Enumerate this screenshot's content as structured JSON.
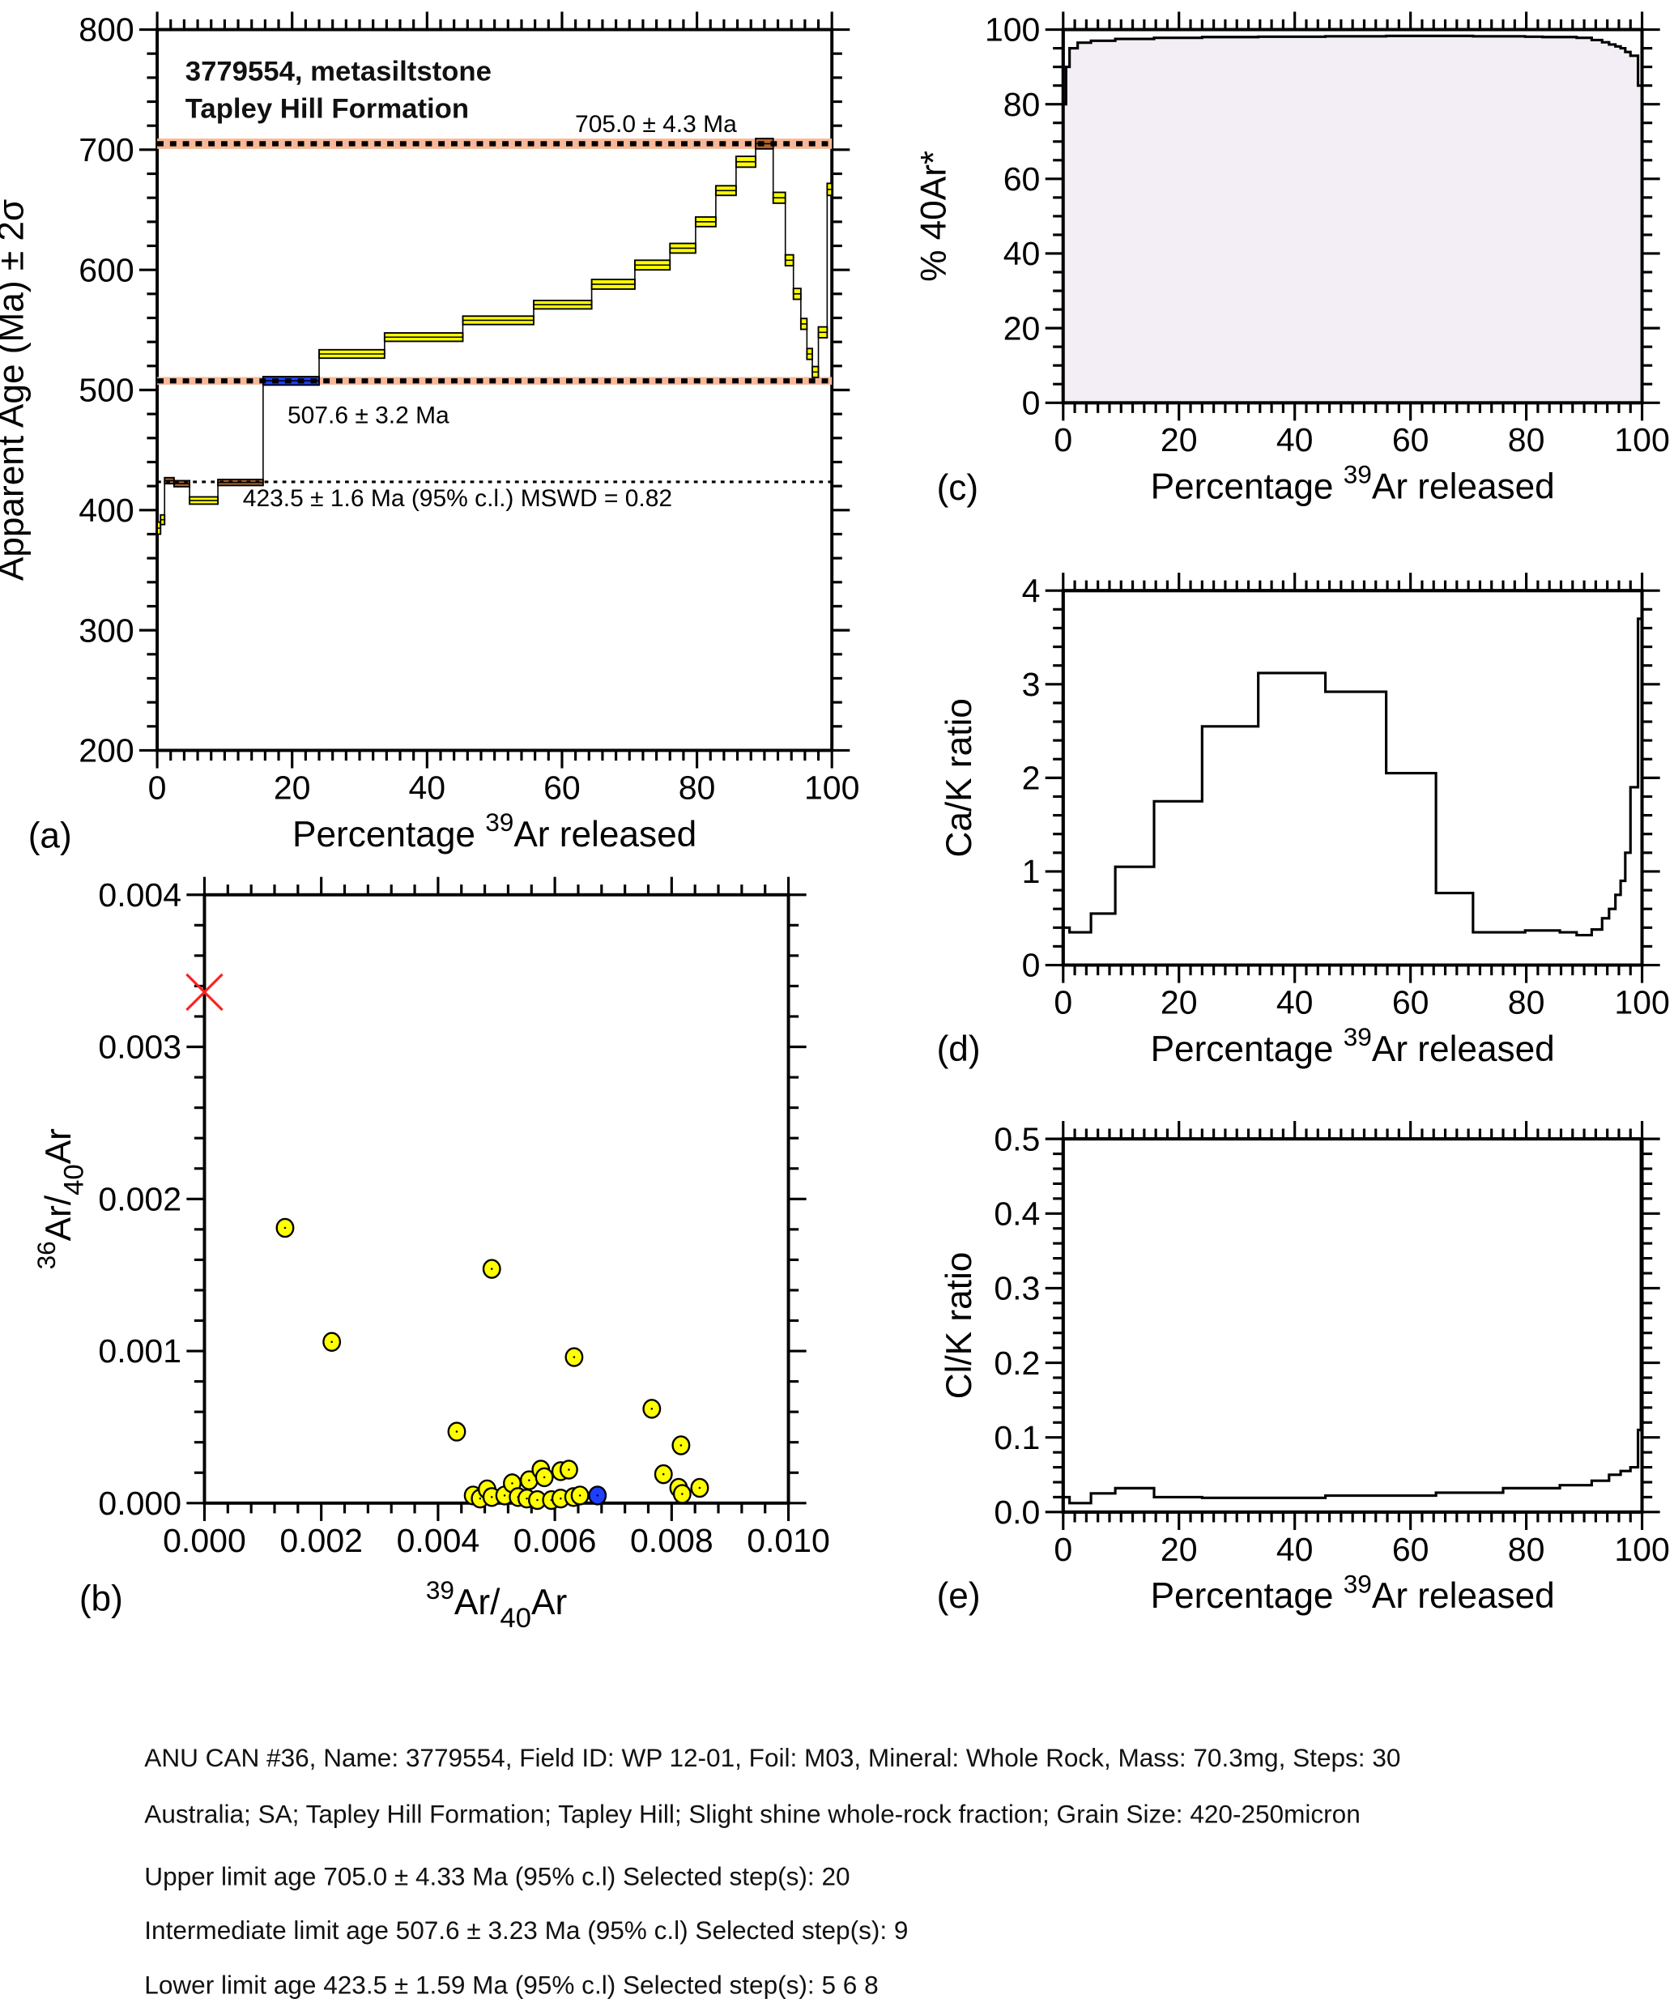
{
  "chart_data": [
    {
      "id": "a",
      "panel_label": "(a)",
      "type": "step-spectrum",
      "title_lines": [
        "3779554, metasiltstone",
        "Tapley Hill Formation"
      ],
      "xlabel_pre": "Percentage ",
      "xlabel_sup": "39",
      "xlabel_post": "Ar released",
      "ylabel": "Apparent Age (Ma) ± 2σ",
      "xlim": [
        0,
        100
      ],
      "ylim": [
        200,
        800
      ],
      "xticks": [
        0,
        20,
        40,
        60,
        80,
        100
      ],
      "yticks": [
        200,
        300,
        400,
        500,
        600,
        700,
        800
      ],
      "plateaus": [
        {
          "value": 705.0,
          "band": 4.3,
          "label": "705.0 ± 4.3 Ma",
          "style": "band"
        },
        {
          "value": 507.6,
          "band": 3.2,
          "label": "507.6 ± 3.2 Ma",
          "style": "band"
        },
        {
          "value": 423.5,
          "band": 0,
          "label": "423.5 ± 1.6 Ma (95% c.l.) MSWD = 0.82",
          "style": "line"
        }
      ],
      "steps": [
        {
          "x0": 0,
          "x1": 0.5,
          "age": 385,
          "err": 5,
          "group": "other"
        },
        {
          "x0": 0.5,
          "x1": 1.1,
          "age": 392,
          "err": 4,
          "group": "other"
        },
        {
          "x0": 1.1,
          "x1": 2.5,
          "age": 424.5,
          "err": 2.5,
          "group": "lower"
        },
        {
          "x0": 2.5,
          "x1": 4.8,
          "age": 422,
          "err": 2.5,
          "group": "lower"
        },
        {
          "x0": 4.8,
          "x1": 9.0,
          "age": 408,
          "err": 3,
          "group": "other"
        },
        {
          "x0": 9.0,
          "x1": 15.7,
          "age": 423,
          "err": 2.5,
          "group": "lower"
        },
        {
          "x0": 15.7,
          "x1": 24.0,
          "age": 507.6,
          "err": 3.5,
          "group": "intermediate"
        },
        {
          "x0": 24.0,
          "x1": 33.7,
          "age": 530,
          "err": 3.5,
          "group": "other"
        },
        {
          "x0": 33.7,
          "x1": 45.3,
          "age": 544,
          "err": 3.5,
          "group": "other"
        },
        {
          "x0": 45.3,
          "x1": 55.8,
          "age": 558,
          "err": 3.5,
          "group": "other"
        },
        {
          "x0": 55.8,
          "x1": 64.4,
          "age": 571,
          "err": 3.5,
          "group": "other"
        },
        {
          "x0": 64.4,
          "x1": 70.8,
          "age": 588,
          "err": 4,
          "group": "other"
        },
        {
          "x0": 70.8,
          "x1": 76.0,
          "age": 604,
          "err": 4,
          "group": "other"
        },
        {
          "x0": 76.0,
          "x1": 79.8,
          "age": 618,
          "err": 4,
          "group": "other"
        },
        {
          "x0": 79.8,
          "x1": 82.8,
          "age": 640,
          "err": 4,
          "group": "other"
        },
        {
          "x0": 82.8,
          "x1": 85.8,
          "age": 666,
          "err": 4,
          "group": "other"
        },
        {
          "x0": 85.8,
          "x1": 88.7,
          "age": 690,
          "err": 4.5,
          "group": "other"
        },
        {
          "x0": 88.7,
          "x1": 91.3,
          "age": 705,
          "err": 4.3,
          "group": "upper"
        },
        {
          "x0": 91.3,
          "x1": 93.1,
          "age": 660,
          "err": 4.5,
          "group": "other"
        },
        {
          "x0": 93.1,
          "x1": 94.3,
          "age": 608,
          "err": 4.5,
          "group": "other"
        },
        {
          "x0": 94.3,
          "x1": 95.4,
          "age": 580,
          "err": 4.5,
          "group": "other"
        },
        {
          "x0": 95.4,
          "x1": 96.3,
          "age": 555,
          "err": 4.5,
          "group": "other"
        },
        {
          "x0": 96.3,
          "x1": 97.1,
          "age": 530,
          "err": 4.5,
          "group": "other"
        },
        {
          "x0": 97.1,
          "x1": 98.0,
          "age": 515,
          "err": 4.5,
          "group": "other"
        },
        {
          "x0": 98.0,
          "x1": 99.3,
          "age": 548,
          "err": 4.5,
          "group": "other"
        },
        {
          "x0": 99.3,
          "x1": 100,
          "age": 667,
          "err": 5,
          "group": "other"
        }
      ]
    },
    {
      "id": "b",
      "panel_label": "(b)",
      "type": "scatter",
      "xlabel_sup": "39",
      "xlabel_main": "Ar/",
      "xlabel_sub": "40",
      "xlabel_post": "Ar",
      "ylabel_sup": "36",
      "ylabel_main": "Ar/",
      "ylabel_sub": "40",
      "ylabel_post": "Ar",
      "xlim": [
        0,
        0.01
      ],
      "ylim": [
        0,
        0.004
      ],
      "xticks": [
        "0.000",
        "0.002",
        "0.004",
        "0.006",
        "0.008",
        "0.010"
      ],
      "yticks": [
        "0.000",
        "0.001",
        "0.002",
        "0.003",
        "0.004"
      ],
      "intercept_marker": {
        "x": 0,
        "y": 0.00336,
        "symbol": "x",
        "color": "#ff2020"
      },
      "points": [
        {
          "x": 0.00138,
          "y": 0.00181,
          "group": "other"
        },
        {
          "x": 0.00218,
          "y": 0.00106,
          "group": "other"
        },
        {
          "x": 0.00432,
          "y": 0.00047,
          "group": "other"
        },
        {
          "x": 0.00492,
          "y": 0.00154,
          "group": "other"
        },
        {
          "x": 0.00633,
          "y": 0.00096,
          "group": "other"
        },
        {
          "x": 0.00766,
          "y": 0.00062,
          "group": "other"
        },
        {
          "x": 0.00816,
          "y": 0.00038,
          "group": "other"
        },
        {
          "x": 0.00786,
          "y": 0.00019,
          "group": "other"
        },
        {
          "x": 0.00812,
          "y": 0.0001,
          "group": "other"
        },
        {
          "x": 0.00818,
          "y": 6e-05,
          "group": "other"
        },
        {
          "x": 0.00848,
          "y": 0.0001,
          "group": "other"
        },
        {
          "x": 0.0046,
          "y": 5e-05,
          "group": "other"
        },
        {
          "x": 0.00472,
          "y": 3e-05,
          "group": "other"
        },
        {
          "x": 0.00484,
          "y": 9e-05,
          "group": "other"
        },
        {
          "x": 0.00492,
          "y": 4e-05,
          "group": "other"
        },
        {
          "x": 0.00514,
          "y": 5e-05,
          "group": "other"
        },
        {
          "x": 0.00527,
          "y": 0.00013,
          "group": "other"
        },
        {
          "x": 0.00537,
          "y": 4e-05,
          "group": "other"
        },
        {
          "x": 0.00556,
          "y": 0.00015,
          "group": "other"
        },
        {
          "x": 0.00552,
          "y": 3e-05,
          "group": "other"
        },
        {
          "x": 0.00576,
          "y": 0.00022,
          "group": "other"
        },
        {
          "x": 0.00582,
          "y": 0.00017,
          "group": "other"
        },
        {
          "x": 0.0057,
          "y": 2e-05,
          "group": "other"
        },
        {
          "x": 0.00594,
          "y": 2e-05,
          "group": "other"
        },
        {
          "x": 0.0061,
          "y": 0.00021,
          "group": "other"
        },
        {
          "x": 0.00624,
          "y": 0.00022,
          "group": "other"
        },
        {
          "x": 0.0061,
          "y": 3e-05,
          "group": "other"
        },
        {
          "x": 0.00632,
          "y": 4e-05,
          "group": "other"
        },
        {
          "x": 0.00643,
          "y": 5e-05,
          "group": "other"
        },
        {
          "x": 0.00673,
          "y": 5e-05,
          "group": "intermediate"
        }
      ]
    },
    {
      "id": "c",
      "panel_label": "(c)",
      "type": "step-area",
      "xlabel_pre": "Percentage ",
      "xlabel_sup": "39",
      "xlabel_post": "Ar released",
      "ylabel": "% 40Ar*",
      "xlim": [
        0,
        100
      ],
      "ylim": [
        0,
        100
      ],
      "xticks": [
        0,
        20,
        40,
        60,
        80,
        100
      ],
      "yticks": [
        0,
        20,
        40,
        60,
        80,
        100
      ],
      "steps": [
        [
          0,
          0.5,
          80
        ],
        [
          0.5,
          1.1,
          90
        ],
        [
          1.1,
          2.5,
          95
        ],
        [
          2.5,
          4.8,
          96.5
        ],
        [
          4.8,
          9,
          97
        ],
        [
          9,
          15.7,
          97.5
        ],
        [
          15.7,
          24,
          97.8
        ],
        [
          24,
          33.7,
          98
        ],
        [
          33.7,
          45.3,
          98.1
        ],
        [
          45.3,
          55.8,
          98.2
        ],
        [
          55.8,
          64.4,
          98.3
        ],
        [
          64.4,
          70.8,
          98.3
        ],
        [
          70.8,
          76,
          98.2
        ],
        [
          76,
          79.8,
          98.2
        ],
        [
          79.8,
          82.8,
          98.1
        ],
        [
          82.8,
          85.8,
          98
        ],
        [
          85.8,
          88.7,
          98
        ],
        [
          88.7,
          91.3,
          97.8
        ],
        [
          91.3,
          93.1,
          97.2
        ],
        [
          93.1,
          94.3,
          96.6
        ],
        [
          94.3,
          95.4,
          96
        ],
        [
          95.4,
          96.3,
          95.5
        ],
        [
          96.3,
          97.1,
          95
        ],
        [
          97.1,
          98,
          94
        ],
        [
          98,
          99.3,
          93
        ],
        [
          99.3,
          100,
          85
        ]
      ]
    },
    {
      "id": "d",
      "panel_label": "(d)",
      "type": "step-line",
      "xlabel_pre": "Percentage ",
      "xlabel_sup": "39",
      "xlabel_post": "Ar released",
      "ylabel": "Ca/K ratio",
      "xlim": [
        0,
        100
      ],
      "ylim": [
        0,
        4
      ],
      "xticks": [
        0,
        20,
        40,
        60,
        80,
        100
      ],
      "yticks": [
        0,
        1,
        2,
        3,
        4
      ],
      "steps": [
        [
          0,
          1.1,
          0.4
        ],
        [
          1.1,
          4.8,
          0.35
        ],
        [
          4.8,
          9,
          0.55
        ],
        [
          9,
          15.7,
          1.05
        ],
        [
          15.7,
          24,
          1.75
        ],
        [
          24,
          33.7,
          2.55
        ],
        [
          33.7,
          45.3,
          3.12
        ],
        [
          45.3,
          55.8,
          2.92
        ],
        [
          55.8,
          64.4,
          2.05
        ],
        [
          64.4,
          70.8,
          0.77
        ],
        [
          70.8,
          79.8,
          0.35
        ],
        [
          79.8,
          85.8,
          0.37
        ],
        [
          85.8,
          88.7,
          0.35
        ],
        [
          88.7,
          91.3,
          0.32
        ],
        [
          91.3,
          93.1,
          0.38
        ],
        [
          93.1,
          94.3,
          0.5
        ],
        [
          94.3,
          95.4,
          0.6
        ],
        [
          95.4,
          96.3,
          0.75
        ],
        [
          96.3,
          97.1,
          0.9
        ],
        [
          97.1,
          98,
          1.2
        ],
        [
          98,
          99.3,
          1.9
        ],
        [
          99.3,
          100,
          3.7
        ]
      ]
    },
    {
      "id": "e",
      "panel_label": "(e)",
      "type": "step-line",
      "xlabel_pre": "Percentage ",
      "xlabel_sup": "39",
      "xlabel_post": "Ar released",
      "ylabel": "Cl/K ratio",
      "xlim": [
        0,
        100
      ],
      "ylim": [
        0,
        0.5
      ],
      "xticks": [
        0,
        20,
        40,
        60,
        80,
        100
      ],
      "yticks": [
        "0.0",
        "0.1",
        "0.2",
        "0.3",
        "0.4",
        "0.5"
      ],
      "steps": [
        [
          0,
          1.1,
          0.02
        ],
        [
          1.1,
          4.8,
          0.012
        ],
        [
          4.8,
          9,
          0.025
        ],
        [
          9,
          15.7,
          0.032
        ],
        [
          15.7,
          24,
          0.02
        ],
        [
          24,
          45.3,
          0.019
        ],
        [
          45.3,
          64.4,
          0.022
        ],
        [
          64.4,
          76,
          0.026
        ],
        [
          76,
          85.8,
          0.032
        ],
        [
          85.8,
          91.3,
          0.036
        ],
        [
          91.3,
          94.3,
          0.042
        ],
        [
          94.3,
          96.3,
          0.05
        ],
        [
          96.3,
          98,
          0.055
        ],
        [
          98,
          99.3,
          0.06
        ],
        [
          99.3,
          99.8,
          0.11
        ],
        [
          99.8,
          100,
          0.5
        ]
      ]
    }
  ],
  "colors": {
    "step_other": "#ffff00",
    "step_lower": "#b5652a",
    "step_upper": "#b5652a",
    "step_intermediate": "#1f3fff",
    "band": "#f8b898",
    "area_fill": "#f3eef6"
  },
  "footer": [
    "ANU CAN #36, Name: 3779554, Field ID: WP 12-01, Foil: M03, Mineral: Whole Rock, Mass: 70.3mg, Steps: 30",
    "Australia; SA; Tapley Hill Formation; Tapley Hill; Slight shine whole-rock fraction; Grain Size: 420-250micron",
    "Upper limit age 705.0 ± 4.33 Ma (95% c.l)  Selected step(s):  20",
    "Intermediate limit age 507.6 ± 3.23 Ma (95% c.l)  Selected step(s):  9",
    "Lower limit age 423.5 ± 1.59 Ma (95% c.l)  Selected step(s):  5 6 8"
  ]
}
